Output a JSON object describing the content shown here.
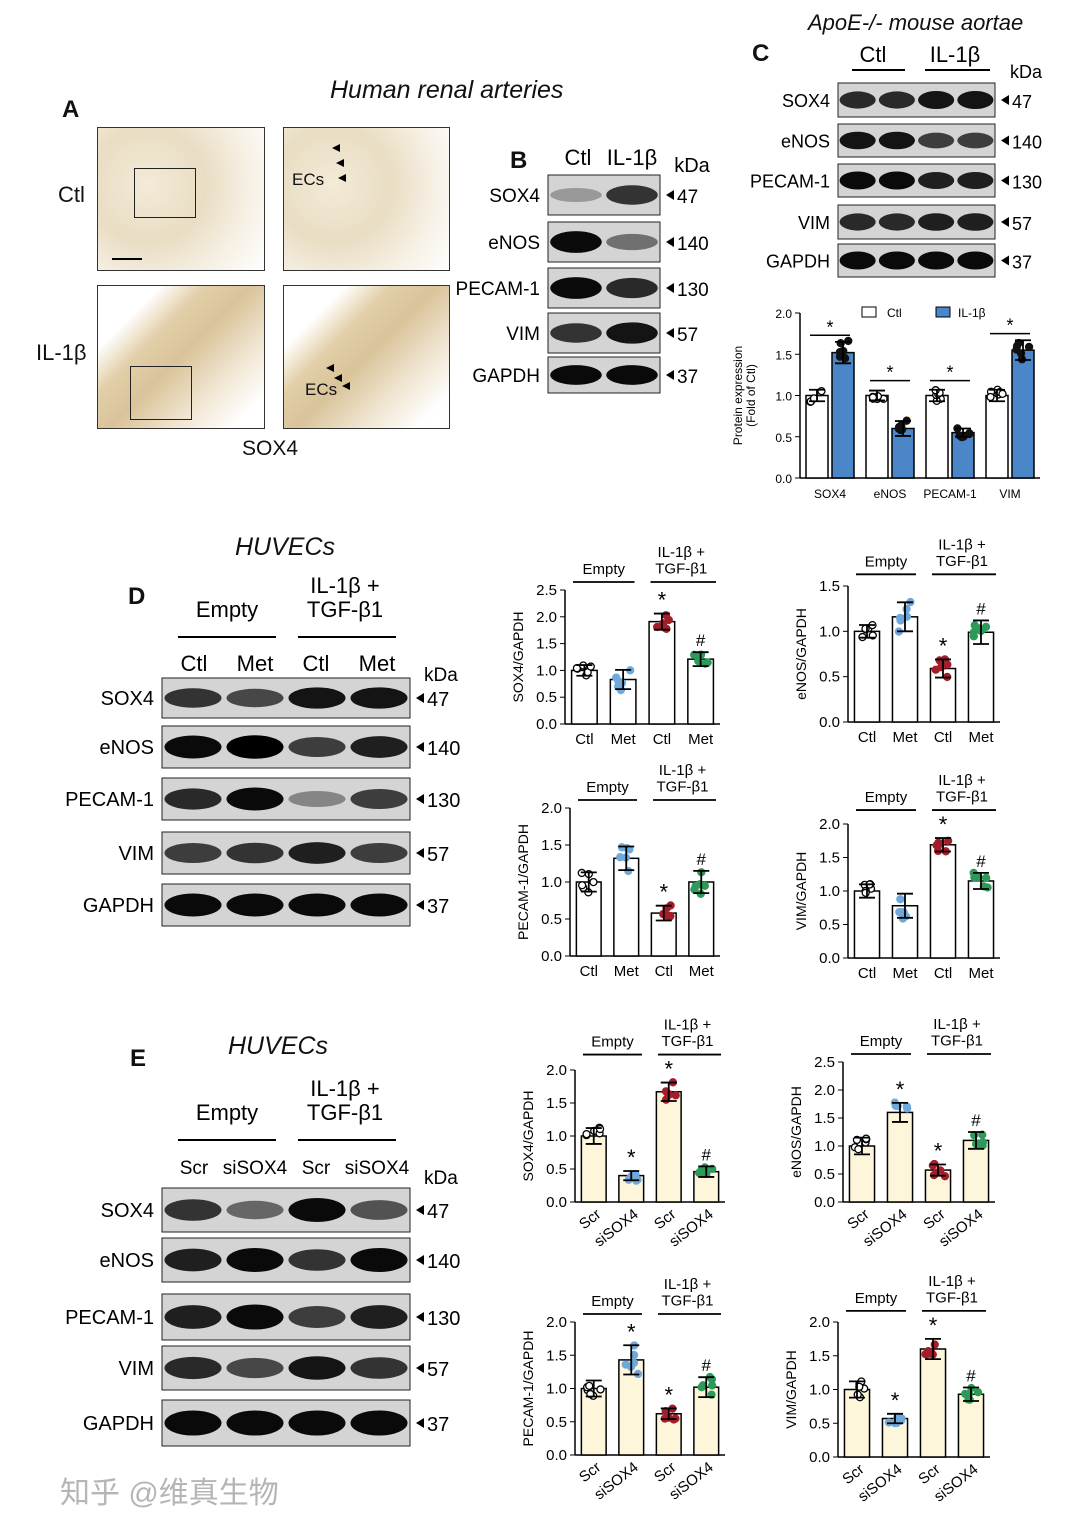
{
  "panels": {
    "A": "A",
    "B": "B",
    "C": "C",
    "D": "D",
    "E": "E"
  },
  "panelA": {
    "title": "Human renal arteries",
    "rows": [
      "Ctl",
      "IL-1β"
    ],
    "ecs_label": "ECs",
    "stain": "SOX4"
  },
  "panelB": {
    "lanes": [
      "Ctl",
      "IL-1β"
    ],
    "kda_label": "kDa",
    "proteins": [
      "SOX4",
      "eNOS",
      "PECAM-1",
      "VIM",
      "GAPDH"
    ],
    "kda": [
      "47",
      "140",
      "130",
      "57",
      "37"
    ],
    "intensity": [
      [
        0.25,
        0.75
      ],
      [
        0.95,
        0.45
      ],
      [
        0.95,
        0.8
      ],
      [
        0.75,
        0.9
      ],
      [
        0.95,
        0.95
      ]
    ]
  },
  "panelC": {
    "title": "ApoE-/- mouse aortae",
    "groups": [
      "Ctl",
      "IL-1β"
    ],
    "kda_label": "kDa",
    "proteins": [
      "SOX4",
      "eNOS",
      "PECAM-1",
      "VIM",
      "GAPDH"
    ],
    "kda": [
      "47",
      "140",
      "130",
      "57",
      "37"
    ],
    "intensity": [
      [
        0.8,
        0.8,
        0.9,
        0.9
      ],
      [
        0.9,
        0.9,
        0.7,
        0.7
      ],
      [
        0.95,
        0.95,
        0.85,
        0.85
      ],
      [
        0.8,
        0.8,
        0.85,
        0.85
      ],
      [
        0.95,
        0.95,
        0.95,
        0.95
      ]
    ]
  },
  "panelD": {
    "title": "HUVECs",
    "groups": [
      "Empty",
      "IL-1β +\nTGF-β1"
    ],
    "lanes": [
      "Ctl",
      "Met",
      "Ctl",
      "Met"
    ],
    "kda_label": "kDa",
    "proteins": [
      "SOX4",
      "eNOS",
      "PECAM-1",
      "VIM",
      "GAPDH"
    ],
    "kda": [
      "47",
      "140",
      "130",
      "57",
      "37"
    ],
    "intensity": [
      [
        0.75,
        0.65,
        0.9,
        0.9
      ],
      [
        0.95,
        1,
        0.7,
        0.85
      ],
      [
        0.8,
        0.95,
        0.35,
        0.7
      ],
      [
        0.7,
        0.75,
        0.85,
        0.7
      ],
      [
        0.95,
        0.95,
        0.95,
        0.95
      ]
    ]
  },
  "panelE": {
    "title": "HUVECs",
    "groups": [
      "Empty",
      "IL-1β +\nTGF-β1"
    ],
    "lanes": [
      "Scr",
      "siSOX4",
      "Scr",
      "siSOX4"
    ],
    "kda_label": "kDa",
    "proteins": [
      "SOX4",
      "eNOS",
      "PECAM-1",
      "VIM",
      "GAPDH"
    ],
    "kda": [
      "47",
      "140",
      "130",
      "57",
      "37"
    ],
    "intensity": [
      [
        0.75,
        0.5,
        0.95,
        0.6
      ],
      [
        0.85,
        0.95,
        0.75,
        0.95
      ],
      [
        0.85,
        0.95,
        0.7,
        0.85
      ],
      [
        0.8,
        0.65,
        0.9,
        0.75
      ],
      [
        0.95,
        0.95,
        0.95,
        0.95
      ]
    ]
  },
  "watermark": "知乎 @维真生物",
  "colors": {
    "ctl": "#ffffff",
    "il1b": "#4a86c8",
    "met": "#6fa8dc",
    "il1b_ctl": "#a31e2a",
    "il1b_met": "#2e9a5a",
    "siRNA_bar": "#fdf6da"
  },
  "chart_data": [
    {
      "id": "C",
      "type": "bar",
      "ylabel": "Protein expression\n(Fold of Ctl)",
      "ylim": [
        0,
        2.0
      ],
      "yticks": [
        "0.0",
        "0.5",
        "1.0",
        "1.5",
        "2.0"
      ],
      "categories": [
        "SOX4",
        "eNOS",
        "PECAM-1",
        "VIM"
      ],
      "series": [
        {
          "name": "Ctl",
          "values": [
            1.0,
            1.0,
            1.0,
            1.0
          ],
          "err": [
            0.07,
            0.06,
            0.07,
            0.07
          ]
        },
        {
          "name": "IL-1β",
          "values": [
            1.52,
            0.6,
            0.55,
            1.55
          ],
          "err": [
            0.13,
            0.09,
            0.05,
            0.12
          ]
        }
      ],
      "sig": [
        "*",
        "*",
        "*",
        "*"
      ],
      "legend": "top"
    },
    {
      "id": "D1",
      "type": "bar",
      "ylabel": "SOX4/GAPDH",
      "ylim": [
        0,
        2.5
      ],
      "yticks": [
        "0.0",
        "0.5",
        "1.0",
        "1.5",
        "2.0",
        "2.5"
      ],
      "categories": [
        "Ctl",
        "Met",
        "Ctl",
        "Met"
      ],
      "groups": [
        "Empty",
        "IL-1β +\nTGF-β1"
      ],
      "values": [
        1.0,
        0.83,
        1.91,
        1.21
      ],
      "err": [
        0.1,
        0.18,
        0.15,
        0.13
      ],
      "marks": [
        "",
        "",
        "*",
        "#"
      ]
    },
    {
      "id": "D2",
      "type": "bar",
      "ylabel": "eNOS/GAPDH",
      "ylim": [
        0,
        1.5
      ],
      "yticks": [
        "0.0",
        "0.5",
        "1.0",
        "1.5"
      ],
      "categories": [
        "Ctl",
        "Met",
        "Ctl",
        "Met"
      ],
      "groups": [
        "Empty",
        "IL-1β +\nTGF-β1"
      ],
      "values": [
        1.0,
        1.16,
        0.59,
        0.99
      ],
      "err": [
        0.07,
        0.16,
        0.1,
        0.13
      ],
      "marks": [
        "",
        "",
        "*",
        "#"
      ]
    },
    {
      "id": "D3",
      "type": "bar",
      "ylabel": "PECAM-1/GAPDH",
      "ylim": [
        0,
        2.0
      ],
      "yticks": [
        "0.0",
        "0.5",
        "1.0",
        "1.5",
        "2.0"
      ],
      "categories": [
        "Ctl",
        "Met",
        "Ctl",
        "Met"
      ],
      "groups": [
        "Empty",
        "IL-1β +\nTGF-β1"
      ],
      "values": [
        1.0,
        1.32,
        0.58,
        1.0
      ],
      "err": [
        0.13,
        0.16,
        0.1,
        0.15
      ],
      "marks": [
        "",
        "",
        "*",
        "#"
      ]
    },
    {
      "id": "D4",
      "type": "bar",
      "ylabel": "VIM/GAPDH",
      "ylim": [
        0,
        2.0
      ],
      "yticks": [
        "0.0",
        "0.5",
        "1.0",
        "1.5",
        "2.0"
      ],
      "categories": [
        "Ctl",
        "Met",
        "Ctl",
        "Met"
      ],
      "groups": [
        "Empty",
        "IL-1β +\nTGF-β1"
      ],
      "values": [
        1.0,
        0.78,
        1.69,
        1.15
      ],
      "err": [
        0.1,
        0.18,
        0.1,
        0.12
      ],
      "marks": [
        "",
        "",
        "*",
        "#"
      ]
    },
    {
      "id": "E1",
      "type": "bar",
      "ylabel": "SOX4/GAPDH",
      "ylim": [
        0,
        2.0
      ],
      "yticks": [
        "0.0",
        "0.5",
        "1.0",
        "1.5",
        "2.0"
      ],
      "categories": [
        "Scr",
        "siSOX4",
        "Scr",
        "siSOX4"
      ],
      "groups": [
        "Empty",
        "IL-1β +\nTGF-β1"
      ],
      "values": [
        1.0,
        0.4,
        1.67,
        0.46
      ],
      "err": [
        0.12,
        0.07,
        0.14,
        0.08
      ],
      "marks": [
        "",
        "*",
        "*",
        "#"
      ]
    },
    {
      "id": "E2",
      "type": "bar",
      "ylabel": "eNOS/GAPDH",
      "ylim": [
        0,
        2.5
      ],
      "yticks": [
        "0.0",
        "0.5",
        "1.0",
        "1.5",
        "2.0",
        "2.5"
      ],
      "categories": [
        "Scr",
        "siSOX4",
        "Scr",
        "siSOX4"
      ],
      "groups": [
        "Empty",
        "IL-1β +\nTGF-β1"
      ],
      "values": [
        1.0,
        1.6,
        0.57,
        1.1
      ],
      "err": [
        0.15,
        0.17,
        0.1,
        0.15
      ],
      "marks": [
        "",
        "*",
        "*",
        "#"
      ]
    },
    {
      "id": "E3",
      "type": "bar",
      "ylabel": "PECAM-1/GAPDH",
      "ylim": [
        0,
        2.0
      ],
      "yticks": [
        "0.0",
        "0.5",
        "1.0",
        "1.5",
        "2.0"
      ],
      "categories": [
        "Scr",
        "siSOX4",
        "Scr",
        "siSOX4"
      ],
      "groups": [
        "Empty",
        "IL-1β +\nTGF-β1"
      ],
      "values": [
        1.0,
        1.43,
        0.62,
        1.02
      ],
      "err": [
        0.12,
        0.22,
        0.08,
        0.15
      ],
      "marks": [
        "",
        "*",
        "*",
        "#"
      ]
    },
    {
      "id": "E4",
      "type": "bar",
      "ylabel": "VIM/GAPDH",
      "ylim": [
        0,
        2.0
      ],
      "yticks": [
        "0.0",
        "0.5",
        "1.0",
        "1.5",
        "2.0"
      ],
      "categories": [
        "Scr",
        "siSOX4",
        "Scr",
        "siSOX4"
      ],
      "groups": [
        "Empty",
        "IL-1β +\nTGF-β1"
      ],
      "values": [
        1.0,
        0.57,
        1.6,
        0.93
      ],
      "err": [
        0.12,
        0.07,
        0.15,
        0.1
      ],
      "marks": [
        "",
        "*",
        "*",
        "#"
      ]
    }
  ]
}
